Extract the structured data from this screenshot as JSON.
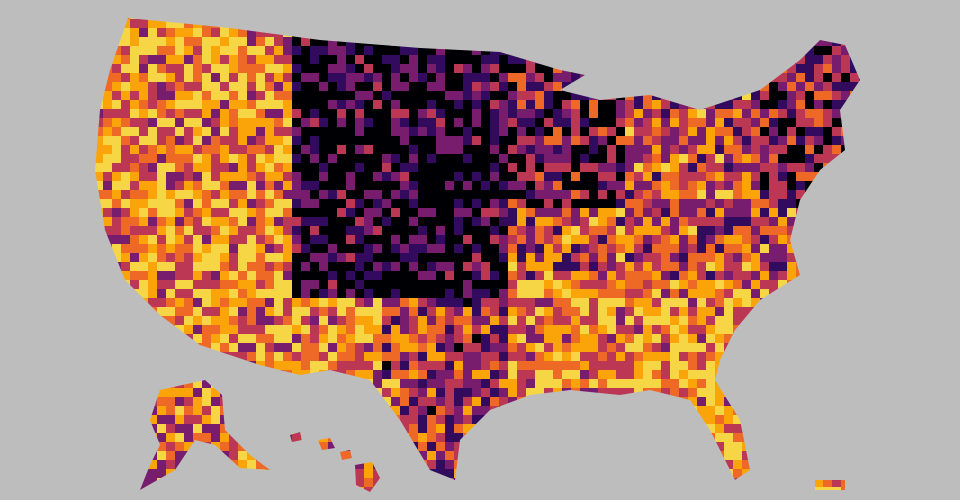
{
  "map": {
    "palette": [
      "#000004",
      "#320a5e",
      "#781c6d",
      "#bc3754",
      "#ed6925",
      "#fba40a",
      "#f6d645"
    ]
  }
}
